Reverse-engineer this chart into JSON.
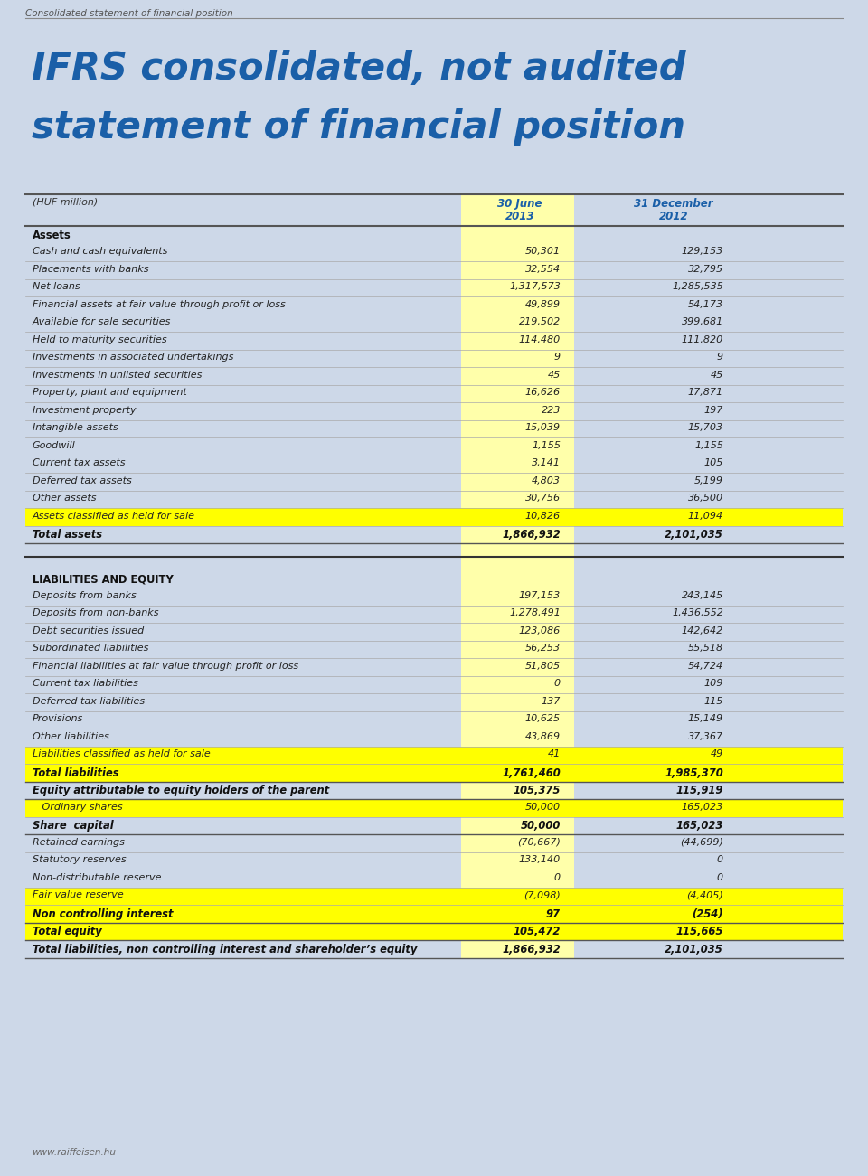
{
  "page_header": "Consolidated statement of financial position",
  "title_line1": "IFRS consolidated, not audited",
  "title_line2": "statement of financial position",
  "col_header_label": "(HUF million)",
  "col1_header_line1": "30 June",
  "col1_header_line2": "2013",
  "col2_header_line1": "31 December",
  "col2_header_line2": "2012",
  "bg_color": "#cdd8e8",
  "yellow_col_color": "#ffffaa",
  "title_color": "#1a5fa8",
  "header_text_color": "#1a5fa8",
  "rows": [
    {
      "label": "Assets",
      "v1": "",
      "v2": "",
      "style": "section_header"
    },
    {
      "label": "Cash and cash equivalents",
      "v1": "50,301",
      "v2": "129,153",
      "style": "normal"
    },
    {
      "label": "Placements with banks",
      "v1": "32,554",
      "v2": "32,795",
      "style": "normal"
    },
    {
      "label": "Net loans",
      "v1": "1,317,573",
      "v2": "1,285,535",
      "style": "normal"
    },
    {
      "label": "Financial assets at fair value through profit or loss",
      "v1": "49,899",
      "v2": "54,173",
      "style": "normal"
    },
    {
      "label": "Available for sale securities",
      "v1": "219,502",
      "v2": "399,681",
      "style": "normal"
    },
    {
      "label": "Held to maturity securities",
      "v1": "114,480",
      "v2": "111,820",
      "style": "normal"
    },
    {
      "label": "Investments in associated undertakings",
      "v1": "9",
      "v2": "9",
      "style": "normal"
    },
    {
      "label": "Investments in unlisted securities",
      "v1": "45",
      "v2": "45",
      "style": "normal"
    },
    {
      "label": "Property, plant and equipment",
      "v1": "16,626",
      "v2": "17,871",
      "style": "normal"
    },
    {
      "label": "Investment property",
      "v1": "223",
      "v2": "197",
      "style": "normal"
    },
    {
      "label": "Intangible assets",
      "v1": "15,039",
      "v2": "15,703",
      "style": "normal"
    },
    {
      "label": "Goodwill",
      "v1": "1,155",
      "v2": "1,155",
      "style": "normal"
    },
    {
      "label": "Current tax assets",
      "v1": "3,141",
      "v2": "105",
      "style": "normal"
    },
    {
      "label": "Deferred tax assets",
      "v1": "4,803",
      "v2": "5,199",
      "style": "normal"
    },
    {
      "label": "Other assets",
      "v1": "30,756",
      "v2": "36,500",
      "style": "normal"
    },
    {
      "label": "Assets classified as held for sale",
      "v1": "10,826",
      "v2": "11,094",
      "style": "normal"
    },
    {
      "label": "Total assets",
      "v1": "1,866,932",
      "v2": "2,101,035",
      "style": "total"
    },
    {
      "label": "__SPACER__",
      "v1": "",
      "v2": "",
      "style": "spacer"
    },
    {
      "label": "LIABILITIES AND EQUITY",
      "v1": "",
      "v2": "",
      "style": "section_header"
    },
    {
      "label": "Deposits from banks",
      "v1": "197,153",
      "v2": "243,145",
      "style": "normal"
    },
    {
      "label": "Deposits from non-banks",
      "v1": "1,278,491",
      "v2": "1,436,552",
      "style": "normal"
    },
    {
      "label": "Debt securities issued",
      "v1": "123,086",
      "v2": "142,642",
      "style": "normal"
    },
    {
      "label": "Subordinated liabilities",
      "v1": "56,253",
      "v2": "55,518",
      "style": "normal"
    },
    {
      "label": "Financial liabilities at fair value through profit or loss",
      "v1": "51,805",
      "v2": "54,724",
      "style": "normal"
    },
    {
      "label": "Current tax liabilities",
      "v1": "0",
      "v2": "109",
      "style": "normal"
    },
    {
      "label": "Deferred tax liabilities",
      "v1": "137",
      "v2": "115",
      "style": "normal"
    },
    {
      "label": "Provisions",
      "v1": "10,625",
      "v2": "15,149",
      "style": "normal"
    },
    {
      "label": "Other liabilities",
      "v1": "43,869",
      "v2": "37,367",
      "style": "normal"
    },
    {
      "label": "Liabilities classified as held for sale",
      "v1": "41",
      "v2": "49",
      "style": "normal"
    },
    {
      "label": "Total liabilities",
      "v1": "1,761,460",
      "v2": "1,985,370",
      "style": "total"
    },
    {
      "label": "Equity attributable to equity holders of the parent",
      "v1": "105,375",
      "v2": "115,919",
      "style": "total"
    },
    {
      "label": "   Ordinary shares",
      "v1": "50,000",
      "v2": "165,023",
      "style": "normal"
    },
    {
      "label": "Share  capital",
      "v1": "50,000",
      "v2": "165,023",
      "style": "total"
    },
    {
      "label": "Retained earnings",
      "v1": "(70,667)",
      "v2": "(44,699)",
      "style": "normal"
    },
    {
      "label": "Statutory reserves",
      "v1": "133,140",
      "v2": "0",
      "style": "normal"
    },
    {
      "label": "Non-distributable reserve",
      "v1": "0",
      "v2": "0",
      "style": "normal"
    },
    {
      "label": "Fair value reserve",
      "v1": "(7,098)",
      "v2": "(4,405)",
      "style": "normal"
    },
    {
      "label": "Non controlling interest",
      "v1": "97",
      "v2": "(254)",
      "style": "total"
    },
    {
      "label": "Total equity",
      "v1": "105,472",
      "v2": "115,665",
      "style": "total"
    },
    {
      "label": "Total liabilities, non controlling interest and shareholder’s equity",
      "v1": "1,866,932",
      "v2": "2,101,035",
      "style": "total"
    }
  ],
  "footer": "www.raiffeisen.hu"
}
